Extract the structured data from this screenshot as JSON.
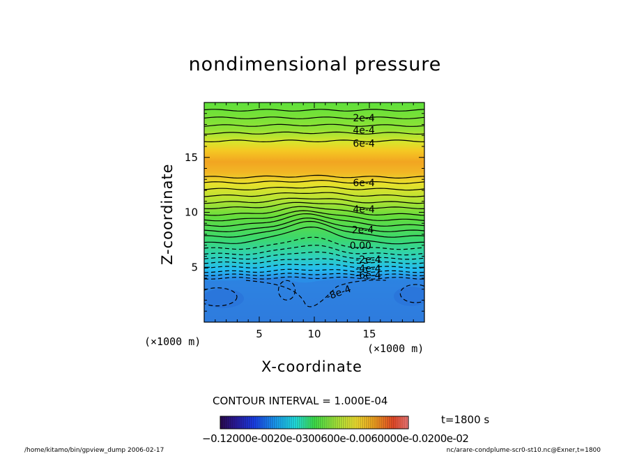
{
  "chart_data": {
    "type": "heatmap",
    "title": "nondimensional pressure",
    "xlabel": "X-coordinate",
    "ylabel": "Z-coordinate",
    "x_unit_left": "(×1000 m)",
    "x_unit_right": "(×1000 m)",
    "xlim": [
      0,
      20
    ],
    "ylim": [
      0,
      20
    ],
    "xticks": [
      "5",
      "10",
      "15"
    ],
    "yticks": [
      "5",
      "10",
      "15"
    ],
    "contour_interval": "CONTOUR INTERVAL = 1.000E-04",
    "contour_labels": [
      "2e-4",
      "4e-4",
      "6e-4",
      "6e-4",
      "4e-4",
      "2e-4",
      "0.00",
      "-2e-4",
      "-4e-4",
      "-6e-4",
      "-8e-4"
    ],
    "colorbar": {
      "range": [
        -0.0012,
        0.0012
      ],
      "tick_text": "−0.12000e-0020e-0300600e-0.0060000e-0.0200e-02"
    },
    "time": "t=1800 s",
    "footer_left": "/home/kitamo/bin/gpview_dump  2006-02-17",
    "footer_right": "nc/arare-condplume-scr0-st10.nc@Exner,t=1800"
  }
}
